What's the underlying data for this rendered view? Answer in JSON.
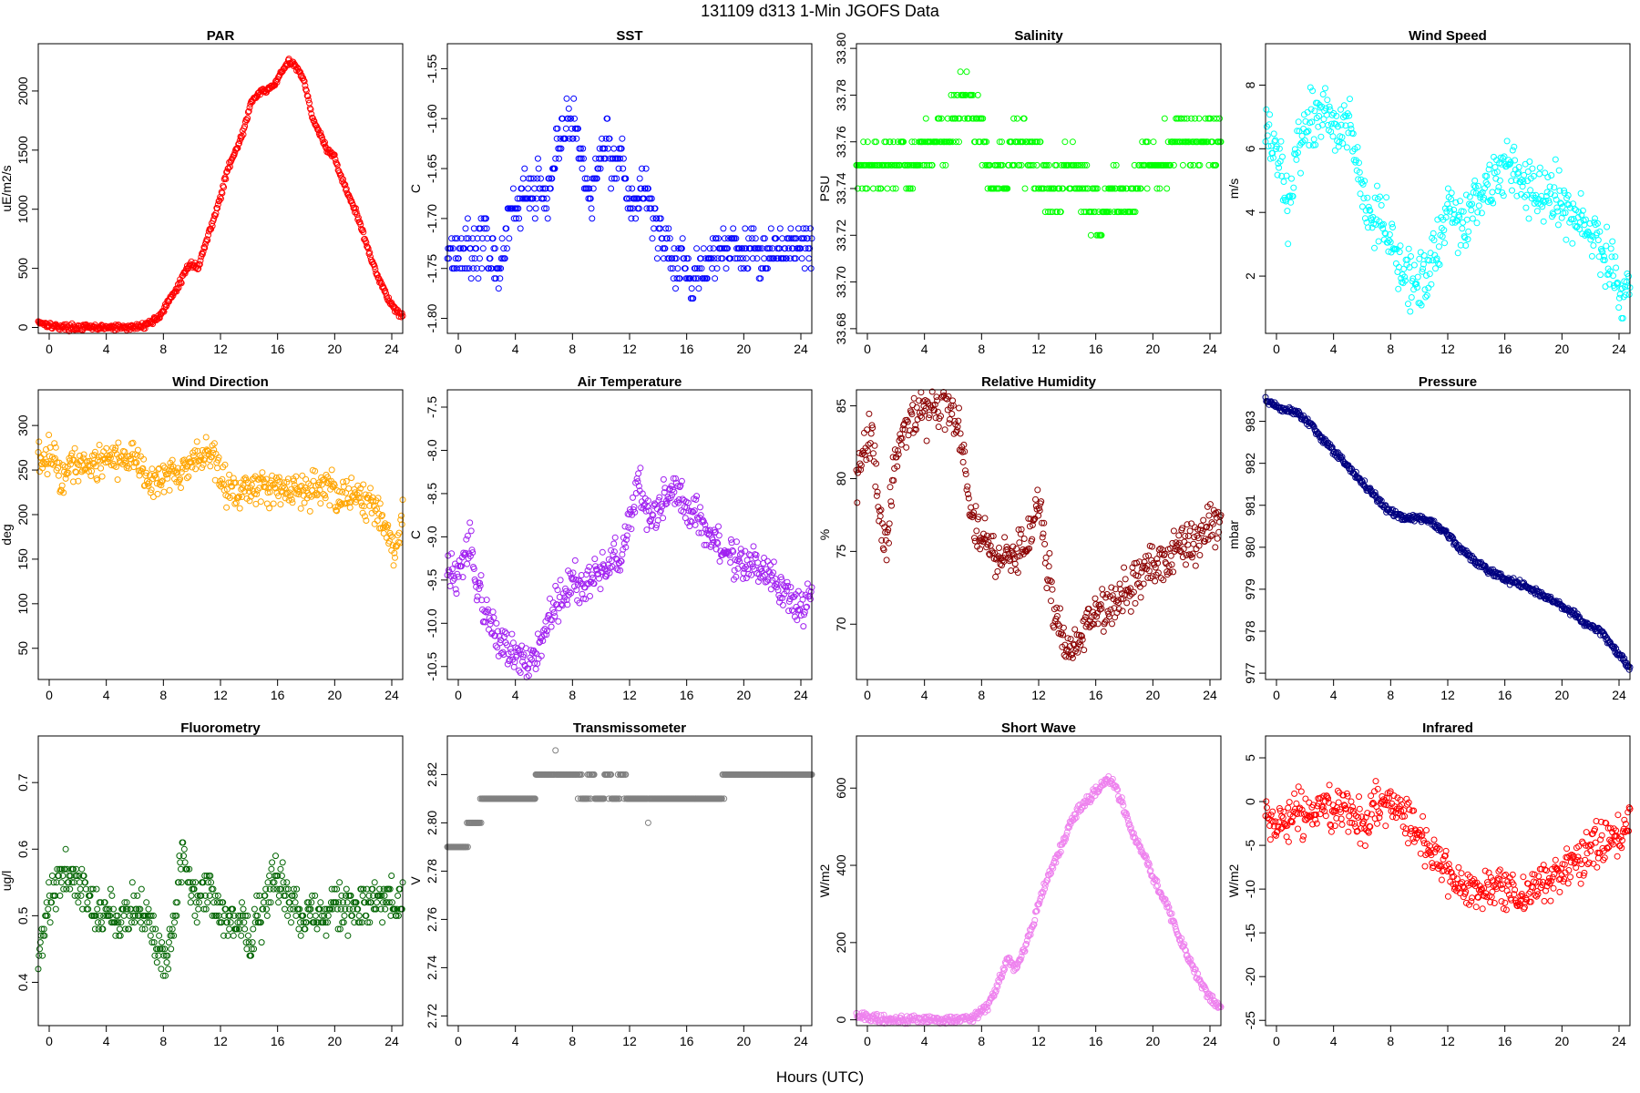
{
  "figure": {
    "title": "131109   d313   1-Min  JGOFS Data",
    "xlabel": "Hours (UTC)"
  },
  "chart_data": [
    {
      "type": "scatter",
      "title": "PAR",
      "ylabel": "uE/m2/s",
      "color": "#ff0000",
      "xlim": [
        0,
        24
      ],
      "xticks": [
        0,
        4,
        8,
        12,
        16,
        20,
        24
      ],
      "ylim": [
        -50,
        2400
      ],
      "yticks": [
        0,
        500,
        1000,
        1500,
        2000
      ],
      "x": [
        0,
        0.5,
        1,
        2,
        3,
        4,
        5,
        6,
        6.5,
        7,
        7.5,
        8,
        8.5,
        9,
        9.5,
        10,
        10.5,
        11,
        11.5,
        12,
        12.5,
        13,
        13.5,
        14,
        14.5,
        15,
        15.5,
        16,
        16.5,
        17,
        17.5,
        18,
        18.5,
        19,
        19.5,
        20,
        20.5,
        21,
        21.5,
        22,
        22.5,
        23,
        23.5,
        24
      ],
      "y": [
        50,
        30,
        10,
        2,
        0,
        0,
        0,
        0,
        5,
        20,
        50,
        100,
        200,
        300,
        420,
        550,
        500,
        700,
        900,
        1100,
        1350,
        1500,
        1650,
        1900,
        1980,
        2000,
        2050,
        2150,
        2250,
        2200,
        2100,
        1800,
        1650,
        1500,
        1450,
        1250,
        1100,
        950,
        750,
        550,
        400,
        250,
        150,
        100
      ]
    },
    {
      "type": "scatter",
      "title": "SST",
      "ylabel": "C",
      "color": "#0000ff",
      "xlim": [
        0,
        24
      ],
      "xticks": [
        0,
        4,
        8,
        12,
        16,
        20,
        24
      ],
      "ylim": [
        -1.815,
        -1.525
      ],
      "yticks": [
        -1.8,
        -1.75,
        -1.7,
        -1.65,
        -1.6,
        -1.55
      ],
      "x": [
        0,
        1,
        2,
        2.5,
        3,
        3.5,
        4,
        4.5,
        5,
        5.5,
        6,
        6.5,
        7,
        7.5,
        8,
        8.5,
        9,
        9.5,
        10,
        10.5,
        11,
        11.5,
        12,
        12.5,
        13,
        13.5,
        14,
        14.5,
        15,
        15.5,
        16,
        16.5,
        17,
        17.5,
        18,
        19,
        20,
        21,
        22,
        23,
        24
      ],
      "y": [
        -1.73,
        -1.73,
        -1.73,
        -1.72,
        -1.74,
        -1.75,
        -1.71,
        -1.69,
        -1.68,
        -1.67,
        -1.66,
        -1.69,
        -1.64,
        -1.62,
        -1.6,
        -1.61,
        -1.66,
        -1.68,
        -1.64,
        -1.62,
        -1.65,
        -1.63,
        -1.69,
        -1.68,
        -1.66,
        -1.7,
        -1.72,
        -1.73,
        -1.75,
        -1.74,
        -1.76,
        -1.75,
        -1.75,
        -1.74,
        -1.73,
        -1.73,
        -1.73,
        -1.73,
        -1.73,
        -1.73,
        -1.72
      ]
    },
    {
      "type": "scatter",
      "title": "Salinity",
      "ylabel": "PSU",
      "color": "#00ff00",
      "xlim": [
        0,
        24
      ],
      "xticks": [
        0,
        4,
        8,
        12,
        16,
        20,
        24
      ],
      "ylim": [
        33.678,
        33.802
      ],
      "yticks": [
        33.68,
        33.7,
        33.72,
        33.74,
        33.76,
        33.78,
        33.8
      ],
      "x": [
        0,
        1,
        2,
        3,
        4,
        5,
        6,
        7,
        8,
        9,
        10,
        11,
        12,
        13,
        14,
        15,
        16,
        17,
        18,
        19,
        20,
        21,
        22,
        23,
        24
      ],
      "y": [
        33.75,
        33.75,
        33.75,
        33.75,
        33.75,
        33.76,
        33.76,
        33.78,
        33.77,
        33.74,
        33.75,
        33.76,
        33.75,
        33.74,
        33.75,
        33.74,
        33.73,
        33.74,
        33.73,
        33.75,
        33.75,
        33.76,
        33.76,
        33.76,
        33.76
      ]
    },
    {
      "type": "scatter",
      "title": "Wind Speed",
      "ylabel": "m/s",
      "color": "#00ffff",
      "xlim": [
        0,
        24
      ],
      "xticks": [
        0,
        4,
        8,
        12,
        16,
        20,
        24
      ],
      "ylim": [
        0.2,
        9.3
      ],
      "yticks": [
        2,
        4,
        6,
        8
      ],
      "x": [
        0,
        0.5,
        1,
        1.5,
        2,
        2.5,
        3,
        3.5,
        4,
        4.5,
        5,
        5.5,
        6,
        6.5,
        7,
        7.5,
        8,
        8.5,
        9,
        9.5,
        10,
        10.5,
        11,
        11.5,
        12,
        12.5,
        13,
        13.5,
        14,
        14.5,
        15,
        15.5,
        16,
        16.5,
        17,
        17.5,
        18,
        18.5,
        19,
        19.5,
        20,
        20.5,
        21,
        21.5,
        22,
        22.5,
        23,
        23.5,
        24
      ],
      "y": [
        6.5,
        6.2,
        5.5,
        4.0,
        5.5,
        6.5,
        6.8,
        7.0,
        7.2,
        7.0,
        6.8,
        6.5,
        5.8,
        4.5,
        3.8,
        4.0,
        3.5,
        2.8,
        2.2,
        2.0,
        1.8,
        2.0,
        2.5,
        3.0,
        4.5,
        4.0,
        3.5,
        4.0,
        4.5,
        4.8,
        5.0,
        5.3,
        5.5,
        5.2,
        5.0,
        4.8,
        4.6,
        4.8,
        4.5,
        4.2,
        4.0,
        3.8,
        3.5,
        3.2,
        3.0,
        2.5,
        2.0,
        1.5,
        2.0
      ]
    },
    {
      "type": "scatter",
      "title": "Wind Direction",
      "ylabel": "deg",
      "color": "#ffa500",
      "xlim": [
        0,
        24
      ],
      "xticks": [
        0,
        4,
        8,
        12,
        16,
        20,
        24
      ],
      "ylim": [
        15,
        340
      ],
      "yticks": [
        50,
        100,
        150,
        200,
        250,
        300
      ],
      "x": [
        0,
        0.5,
        1,
        1.5,
        2,
        2.5,
        3,
        3.5,
        4,
        4.5,
        5,
        5.5,
        6,
        6.5,
        7,
        7.5,
        8,
        8.5,
        9,
        9.5,
        10,
        10.5,
        11,
        11.5,
        12,
        12.5,
        13,
        13.5,
        14,
        14.5,
        15,
        15.5,
        16,
        16.5,
        17,
        17.5,
        18,
        18.5,
        19,
        19.5,
        20,
        20.5,
        21,
        21.5,
        22,
        22.5,
        23,
        23.5,
        24
      ],
      "y": [
        265,
        262,
        268,
        240,
        258,
        260,
        262,
        258,
        262,
        260,
        265,
        263,
        266,
        268,
        240,
        238,
        242,
        245,
        240,
        250,
        255,
        262,
        265,
        268,
        245,
        230,
        225,
        228,
        232,
        230,
        228,
        226,
        230,
        228,
        232,
        230,
        225,
        228,
        230,
        228,
        225,
        222,
        220,
        215,
        210,
        200,
        180,
        150,
        200
      ]
    },
    {
      "type": "scatter",
      "title": "Air Temperature",
      "ylabel": "C",
      "color": "#a020f0",
      "xlim": [
        0,
        24
      ],
      "xticks": [
        0,
        4,
        8,
        12,
        16,
        20,
        24
      ],
      "ylim": [
        -10.65,
        -7.3
      ],
      "yticks": [
        -10.5,
        -10.0,
        -9.5,
        -9.0,
        -8.5,
        -8.0,
        -7.5
      ],
      "x": [
        0,
        0.5,
        1,
        1.5,
        2,
        2.5,
        3,
        3.5,
        4,
        4.5,
        5,
        5.5,
        6,
        6.5,
        7,
        7.5,
        8,
        8.5,
        9,
        9.5,
        10,
        10.5,
        11,
        11.5,
        12,
        12.5,
        13,
        13.5,
        14,
        14.5,
        15,
        15.5,
        16,
        16.5,
        17,
        17.5,
        18,
        18.5,
        19,
        19.5,
        20,
        20.5,
        21,
        21.5,
        22,
        22.5,
        23,
        23.5,
        24
      ],
      "y": [
        -9.4,
        -9.45,
        -9.4,
        -9.0,
        -9.6,
        -9.9,
        -10.1,
        -10.2,
        -10.3,
        -10.35,
        -10.4,
        -10.45,
        -10.3,
        -10.0,
        -9.8,
        -9.7,
        -9.6,
        -9.5,
        -9.6,
        -9.5,
        -9.4,
        -9.3,
        -9.3,
        -9.2,
        -8.8,
        -8.4,
        -8.6,
        -8.8,
        -8.6,
        -8.5,
        -8.4,
        -8.6,
        -8.7,
        -8.8,
        -8.9,
        -9.0,
        -9.1,
        -9.2,
        -9.3,
        -9.4,
        -9.3,
        -9.4,
        -9.4,
        -9.5,
        -9.6,
        -9.7,
        -9.8,
        -9.9,
        -9.6
      ]
    },
    {
      "type": "scatter",
      "title": "Relative Humidity",
      "ylabel": "%",
      "color": "#8b0000",
      "xlim": [
        0,
        24
      ],
      "xticks": [
        0,
        4,
        8,
        12,
        16,
        20,
        24
      ],
      "ylim": [
        66.2,
        86.1
      ],
      "yticks": [
        70,
        75,
        80,
        85
      ],
      "x": [
        0,
        0.5,
        1,
        1.5,
        2,
        2.5,
        3,
        3.5,
        4,
        4.5,
        5,
        5.5,
        6,
        6.5,
        7,
        7.5,
        8,
        8.5,
        9,
        9.5,
        10,
        10.5,
        11,
        11.5,
        12,
        12.5,
        13,
        13.5,
        14,
        14.5,
        15,
        15.5,
        16,
        16.5,
        17,
        17.5,
        18,
        18.5,
        19,
        19.5,
        20,
        20.5,
        21,
        21.5,
        22,
        22.5,
        23,
        23.5,
        24
      ],
      "y": [
        80,
        82,
        83,
        78,
        75,
        81,
        83,
        84,
        84.5,
        84.8,
        85,
        85.2,
        84.8,
        84.2,
        82,
        78,
        76,
        75.5,
        75,
        74.5,
        74.5,
        74.8,
        75,
        76,
        79,
        74,
        71,
        69,
        68.5,
        69,
        70,
        70.5,
        71,
        71,
        71.5,
        72,
        72.5,
        73,
        73.5,
        74,
        74,
        74.5,
        75,
        75,
        75.5,
        76,
        76.5,
        77,
        77
      ]
    },
    {
      "type": "scatter",
      "title": "Pressure",
      "ylabel": "mbar",
      "color": "#000080",
      "xlim": [
        0,
        24
      ],
      "xticks": [
        0,
        4,
        8,
        12,
        16,
        20,
        24
      ],
      "ylim": [
        976.85,
        983.75
      ],
      "yticks": [
        977,
        978,
        979,
        980,
        981,
        982,
        983
      ],
      "x": [
        0,
        1,
        2,
        3,
        4,
        5,
        6,
        7,
        8,
        9,
        10,
        11,
        12,
        13,
        14,
        15,
        16,
        17,
        18,
        19,
        20,
        21,
        22,
        23,
        24
      ],
      "y": [
        983.5,
        983.3,
        983.2,
        982.9,
        982.5,
        982.1,
        981.7,
        981.3,
        980.9,
        980.7,
        980.7,
        980.6,
        980.3,
        979.9,
        979.6,
        979.4,
        979.2,
        979.1,
        978.9,
        978.7,
        978.5,
        978.2,
        978.0,
        977.6,
        977.1
      ]
    },
    {
      "type": "scatter",
      "title": "Fluorometry",
      "ylabel": "ug/l",
      "color": "#006400",
      "xlim": [
        0,
        24
      ],
      "xticks": [
        0,
        4,
        8,
        12,
        16,
        20,
        24
      ],
      "ylim": [
        0.335,
        0.77
      ],
      "yticks": [
        0.4,
        0.5,
        0.6,
        0.7
      ],
      "x": [
        0,
        0.5,
        1,
        1.5,
        2,
        2.5,
        3,
        3.5,
        4,
        4.5,
        5,
        5.5,
        6,
        6.5,
        7,
        7.5,
        8,
        8.5,
        9,
        9.5,
        10,
        10.5,
        11,
        11.5,
        12,
        12.5,
        13,
        13.5,
        14,
        14.5,
        15,
        15.5,
        16,
        16.5,
        17,
        17.5,
        18,
        18.5,
        19,
        19.5,
        20,
        20.5,
        21,
        21.5,
        22,
        22.5,
        23,
        23.5,
        24
      ],
      "y": [
        0.44,
        0.5,
        0.54,
        0.56,
        0.56,
        0.56,
        0.55,
        0.52,
        0.5,
        0.5,
        0.5,
        0.5,
        0.5,
        0.51,
        0.5,
        0.48,
        0.45,
        0.42,
        0.5,
        0.6,
        0.55,
        0.52,
        0.55,
        0.53,
        0.5,
        0.5,
        0.48,
        0.5,
        0.45,
        0.5,
        0.52,
        0.55,
        0.56,
        0.52,
        0.5,
        0.5,
        0.5,
        0.5,
        0.5,
        0.51,
        0.51,
        0.51,
        0.51,
        0.51,
        0.52,
        0.52,
        0.52,
        0.52,
        0.52
      ]
    },
    {
      "type": "scatter",
      "title": "Transmissometer",
      "ylabel": "V",
      "color": "#808080",
      "xlim": [
        0,
        24
      ],
      "xticks": [
        0,
        4,
        8,
        12,
        16,
        20,
        24
      ],
      "ylim": [
        2.716,
        2.836
      ],
      "yticks": [
        2.72,
        2.74,
        2.76,
        2.78,
        2.8,
        2.82
      ],
      "x": [
        0,
        0.5,
        1,
        1.5,
        2,
        2.5,
        3,
        3.5,
        4,
        4.5,
        5,
        5.5,
        6,
        6.5,
        7,
        7.5,
        8,
        8.5,
        9,
        9.5,
        10,
        10.5,
        11,
        11.5,
        12,
        12.5,
        13,
        13.5,
        14,
        14.5,
        15,
        15.5,
        16,
        16.5,
        17,
        17.5,
        18,
        18.5,
        19,
        19.5,
        20,
        20.5,
        21,
        21.5,
        22,
        22.5,
        23,
        23.5,
        24
      ],
      "y": [
        2.79,
        2.79,
        2.79,
        2.8,
        2.8,
        2.81,
        2.81,
        2.81,
        2.81,
        2.81,
        2.81,
        2.81,
        2.82,
        2.82,
        2.82,
        2.82,
        2.82,
        2.82,
        2.81,
        2.82,
        2.81,
        2.82,
        2.81,
        2.82,
        2.81,
        2.81,
        2.81,
        2.81,
        2.81,
        2.81,
        2.81,
        2.81,
        2.81,
        2.81,
        2.81,
        2.81,
        2.81,
        2.82,
        2.82,
        2.82,
        2.82,
        2.82,
        2.82,
        2.82,
        2.82,
        2.82,
        2.82,
        2.82,
        2.82
      ]
    },
    {
      "type": "scatter",
      "title": "Short Wave",
      "ylabel": "W/m2",
      "color": "#ee82ee",
      "xlim": [
        0,
        24
      ],
      "xticks": [
        0,
        4,
        8,
        12,
        16,
        20,
        24
      ],
      "ylim": [
        -15,
        735
      ],
      "yticks": [
        0,
        200,
        400,
        600
      ],
      "x": [
        0,
        1,
        2,
        3,
        4,
        5,
        6,
        7,
        7.5,
        8,
        8.5,
        9,
        9.5,
        10,
        10.5,
        11,
        11.5,
        12,
        12.5,
        13,
        13.5,
        14,
        14.5,
        15,
        15.5,
        16,
        16.5,
        17,
        17.5,
        18,
        18.5,
        19,
        19.5,
        20,
        20.5,
        21,
        21.5,
        22,
        22.5,
        23,
        23.5,
        24
      ],
      "y": [
        10,
        3,
        0,
        0,
        0,
        0,
        0,
        2,
        5,
        15,
        30,
        60,
        110,
        160,
        130,
        180,
        230,
        300,
        360,
        400,
        450,
        500,
        540,
        560,
        580,
        600,
        620,
        610,
        560,
        500,
        460,
        420,
        370,
        330,
        290,
        240,
        190,
        150,
        110,
        75,
        45,
        30
      ]
    },
    {
      "type": "scatter",
      "title": "Infrared",
      "ylabel": "W/m2",
      "color": "#ff0000",
      "xlim": [
        0,
        24
      ],
      "xticks": [
        0,
        4,
        8,
        12,
        16,
        20,
        24
      ],
      "ylim": [
        -25.6,
        7.5
      ],
      "yticks": [
        -25,
        -20,
        -15,
        -10,
        -5,
        0,
        5
      ],
      "x": [
        0,
        0.5,
        1,
        1.5,
        2,
        2.5,
        3,
        3.5,
        4,
        4.5,
        5,
        5.5,
        6,
        6.5,
        7,
        7.5,
        8,
        8.5,
        9,
        9.5,
        10,
        10.5,
        11,
        11.5,
        12,
        12.5,
        13,
        13.5,
        14,
        14.5,
        15,
        15.5,
        16,
        16.5,
        17,
        17.5,
        18,
        18.5,
        19,
        19.5,
        20,
        20.5,
        21,
        21.5,
        22,
        22.5,
        23,
        23.5,
        24
      ],
      "y": [
        -2,
        -2.5,
        -3,
        -2.5,
        -1,
        -1.5,
        -1,
        -0.5,
        -0.5,
        -1,
        -0.5,
        -1,
        -2,
        -2.5,
        -1.5,
        -0.5,
        0,
        0,
        -1,
        -3,
        -4,
        -5,
        -6,
        -7,
        -8,
        -9,
        -9.5,
        -10,
        -10.5,
        -10,
        -10,
        -10,
        -10.5,
        -11,
        -10.5,
        -10,
        -9.5,
        -9,
        -8.5,
        -8,
        -7.5,
        -7,
        -6,
        -5.5,
        -5,
        -4.5,
        -4,
        -3.5,
        -2
      ]
    }
  ]
}
